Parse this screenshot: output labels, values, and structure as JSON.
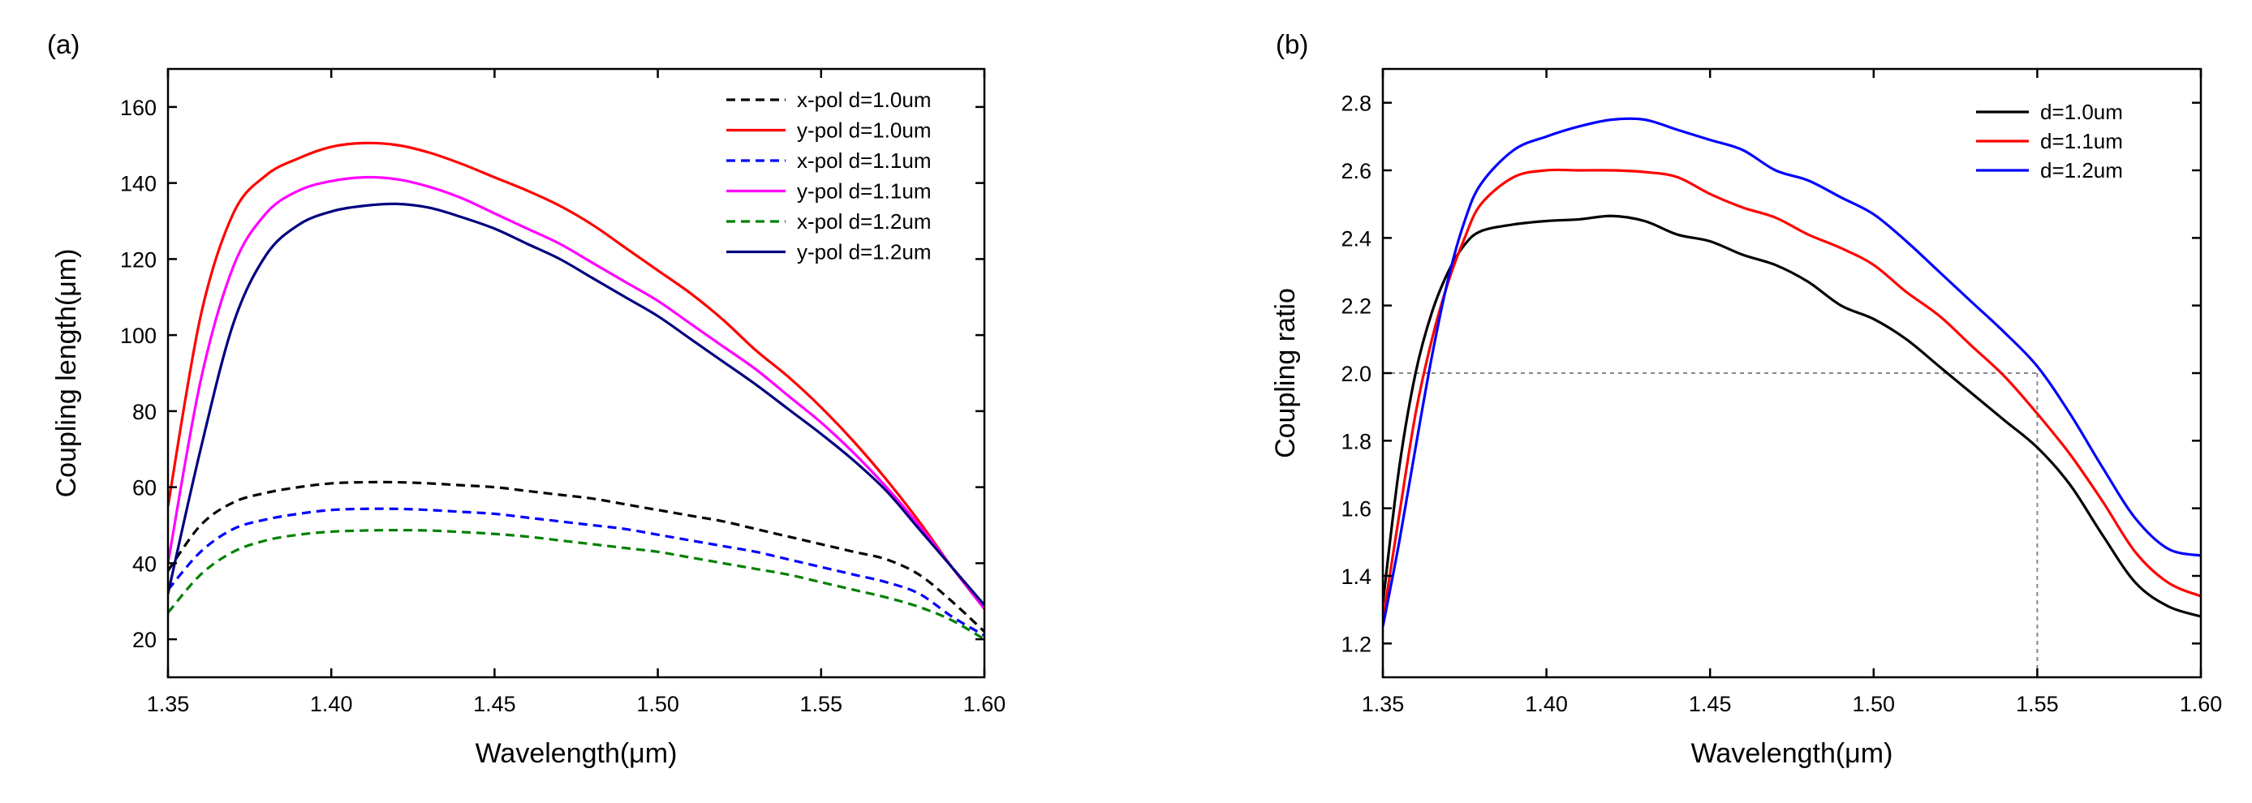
{
  "chart_data": [
    {
      "panel_label": "(a)",
      "type": "line",
      "xlabel": "Wavelength(μm)",
      "ylabel": "Coupling length(μm)",
      "xlim": [
        1.35,
        1.6
      ],
      "ylim": [
        10,
        170
      ],
      "xticks": [
        "1.35",
        "1.40",
        "1.45",
        "1.50",
        "1.55",
        "1.60"
      ],
      "yticks": [
        "20",
        "40",
        "60",
        "80",
        "100",
        "120",
        "140",
        "160"
      ],
      "grid": false,
      "legend_position": "top-right",
      "series": [
        {
          "name": "x-pol d=1.0um",
          "color": "#000000",
          "dashed": true,
          "x": [
            1.35,
            1.36,
            1.37,
            1.38,
            1.39,
            1.4,
            1.41,
            1.42,
            1.43,
            1.44,
            1.45,
            1.46,
            1.47,
            1.48,
            1.49,
            1.5,
            1.51,
            1.52,
            1.53,
            1.54,
            1.55,
            1.56,
            1.57,
            1.58,
            1.59,
            1.6
          ],
          "y": [
            38,
            50,
            56,
            58.5,
            60,
            61,
            61.3,
            61.3,
            61,
            60.5,
            60,
            59,
            58,
            57,
            55.5,
            54,
            52.5,
            51,
            49,
            47,
            45,
            43,
            41,
            37,
            30,
            22
          ]
        },
        {
          "name": "y-pol d=1.0um",
          "color": "#ff0000",
          "dashed": false,
          "x": [
            1.35,
            1.36,
            1.37,
            1.38,
            1.39,
            1.4,
            1.41,
            1.42,
            1.43,
            1.44,
            1.45,
            1.46,
            1.47,
            1.48,
            1.49,
            1.5,
            1.51,
            1.52,
            1.53,
            1.54,
            1.55,
            1.56,
            1.57,
            1.58,
            1.59,
            1.6
          ],
          "y": [
            55,
            105,
            132,
            142,
            146.5,
            149.5,
            150.5,
            150,
            148,
            145,
            141.5,
            138,
            134,
            129,
            123,
            117,
            111,
            104,
            96,
            89,
            81,
            72,
            62,
            51,
            39,
            28
          ]
        },
        {
          "name": "x-pol d=1.1um",
          "color": "#0000ff",
          "dashed": true,
          "x": [
            1.35,
            1.36,
            1.37,
            1.38,
            1.39,
            1.4,
            1.41,
            1.42,
            1.43,
            1.44,
            1.45,
            1.46,
            1.47,
            1.48,
            1.49,
            1.5,
            1.51,
            1.52,
            1.53,
            1.54,
            1.55,
            1.56,
            1.57,
            1.58,
            1.59,
            1.6
          ],
          "y": [
            33,
            43,
            49,
            51.5,
            53,
            54,
            54.3,
            54.3,
            54,
            53.5,
            53,
            52,
            51,
            50,
            49,
            47.5,
            46,
            44.5,
            43,
            41,
            39,
            37,
            35,
            32,
            26,
            21
          ]
        },
        {
          "name": "y-pol d=1.1um",
          "color": "#ff00ff",
          "dashed": false,
          "x": [
            1.35,
            1.36,
            1.37,
            1.38,
            1.39,
            1.4,
            1.41,
            1.42,
            1.43,
            1.44,
            1.45,
            1.46,
            1.47,
            1.48,
            1.49,
            1.5,
            1.51,
            1.52,
            1.53,
            1.54,
            1.55,
            1.56,
            1.57,
            1.58,
            1.59,
            1.6
          ],
          "y": [
            40,
            88,
            118,
            132,
            138,
            140.5,
            141.5,
            141,
            139,
            136,
            132,
            128,
            124,
            119,
            114,
            109,
            103,
            97,
            91,
            84,
            77,
            69,
            60,
            50,
            39,
            28
          ]
        },
        {
          "name": "x-pol d=1.2um",
          "color": "#008000",
          "dashed": true,
          "x": [
            1.35,
            1.36,
            1.37,
            1.38,
            1.39,
            1.4,
            1.41,
            1.42,
            1.43,
            1.44,
            1.45,
            1.46,
            1.47,
            1.48,
            1.49,
            1.5,
            1.51,
            1.52,
            1.53,
            1.54,
            1.55,
            1.56,
            1.57,
            1.58,
            1.59,
            1.6
          ],
          "y": [
            27,
            37,
            43,
            46,
            47.5,
            48.3,
            48.6,
            48.7,
            48.6,
            48.2,
            47.7,
            47,
            46,
            45,
            44,
            43,
            41.5,
            40,
            38.5,
            37,
            35,
            33,
            31,
            28.5,
            25,
            20
          ]
        },
        {
          "name": "y-pol d=1.2um",
          "color": "#000080",
          "dashed": false,
          "x": [
            1.35,
            1.36,
            1.37,
            1.38,
            1.39,
            1.4,
            1.41,
            1.42,
            1.43,
            1.44,
            1.45,
            1.46,
            1.47,
            1.48,
            1.49,
            1.5,
            1.51,
            1.52,
            1.53,
            1.54,
            1.55,
            1.56,
            1.57,
            1.58,
            1.59,
            1.6
          ],
          "y": [
            32,
            70,
            103,
            121,
            129,
            132.5,
            134,
            134.5,
            133.5,
            131,
            128,
            124,
            120,
            115,
            110,
            105,
            99,
            93,
            87,
            80.5,
            74,
            67,
            59,
            49,
            39,
            29
          ]
        }
      ]
    },
    {
      "panel_label": "(b)",
      "type": "line",
      "xlabel": "Wavelength(μm)",
      "ylabel": "Coupling ratio",
      "xlim": [
        1.35,
        1.6
      ],
      "ylim": [
        1.1,
        2.9
      ],
      "xticks": [
        "1.35",
        "1.40",
        "1.45",
        "1.50",
        "1.55",
        "1.60"
      ],
      "yticks": [
        "1.2",
        "1.4",
        "1.6",
        "1.8",
        "2.0",
        "2.2",
        "2.4",
        "2.6",
        "2.8"
      ],
      "grid": false,
      "legend_position": "top-right",
      "reference_lines": [
        {
          "orientation": "horizontal",
          "y": 2.0,
          "x_from": 1.35,
          "x_to": 1.55,
          "style": "dotted",
          "color": "#888888"
        },
        {
          "orientation": "vertical",
          "x": 1.55,
          "y_from": 1.1,
          "y_to": 2.0,
          "style": "dotted",
          "color": "#888888"
        }
      ],
      "series": [
        {
          "name": "d=1.0um",
          "color": "#000000",
          "dashed": false,
          "x": [
            1.35,
            1.355,
            1.36,
            1.365,
            1.37,
            1.375,
            1.38,
            1.39,
            1.4,
            1.41,
            1.42,
            1.43,
            1.44,
            1.45,
            1.46,
            1.47,
            1.48,
            1.49,
            1.5,
            1.51,
            1.52,
            1.53,
            1.54,
            1.55,
            1.56,
            1.57,
            1.58,
            1.59,
            1.6
          ],
          "y": [
            1.32,
            1.72,
            2.0,
            2.18,
            2.3,
            2.38,
            2.42,
            2.44,
            2.45,
            2.455,
            2.465,
            2.45,
            2.41,
            2.39,
            2.35,
            2.32,
            2.27,
            2.2,
            2.16,
            2.1,
            2.02,
            1.94,
            1.86,
            1.78,
            1.67,
            1.52,
            1.38,
            1.31,
            1.28
          ]
        },
        {
          "name": "d=1.1um",
          "color": "#ff0000",
          "dashed": false,
          "x": [
            1.35,
            1.355,
            1.36,
            1.365,
            1.37,
            1.375,
            1.38,
            1.39,
            1.4,
            1.41,
            1.42,
            1.43,
            1.44,
            1.45,
            1.46,
            1.47,
            1.48,
            1.49,
            1.5,
            1.51,
            1.52,
            1.53,
            1.54,
            1.55,
            1.56,
            1.57,
            1.58,
            1.59,
            1.6
          ],
          "y": [
            1.27,
            1.58,
            1.88,
            2.1,
            2.27,
            2.4,
            2.5,
            2.58,
            2.6,
            2.6,
            2.6,
            2.595,
            2.58,
            2.53,
            2.49,
            2.46,
            2.41,
            2.37,
            2.32,
            2.24,
            2.17,
            2.08,
            1.99,
            1.88,
            1.76,
            1.62,
            1.47,
            1.38,
            1.34
          ]
        },
        {
          "name": "d=1.2um",
          "color": "#0000ff",
          "dashed": false,
          "x": [
            1.35,
            1.355,
            1.36,
            1.365,
            1.37,
            1.375,
            1.38,
            1.39,
            1.4,
            1.41,
            1.42,
            1.43,
            1.44,
            1.45,
            1.46,
            1.47,
            1.48,
            1.49,
            1.5,
            1.51,
            1.52,
            1.53,
            1.54,
            1.55,
            1.56,
            1.57,
            1.58,
            1.59,
            1.6
          ],
          "y": [
            1.25,
            1.5,
            1.78,
            2.05,
            2.28,
            2.45,
            2.56,
            2.66,
            2.7,
            2.73,
            2.75,
            2.75,
            2.72,
            2.69,
            2.66,
            2.6,
            2.57,
            2.52,
            2.47,
            2.39,
            2.3,
            2.21,
            2.12,
            2.02,
            1.88,
            1.72,
            1.57,
            1.48,
            1.46
          ]
        }
      ]
    }
  ]
}
